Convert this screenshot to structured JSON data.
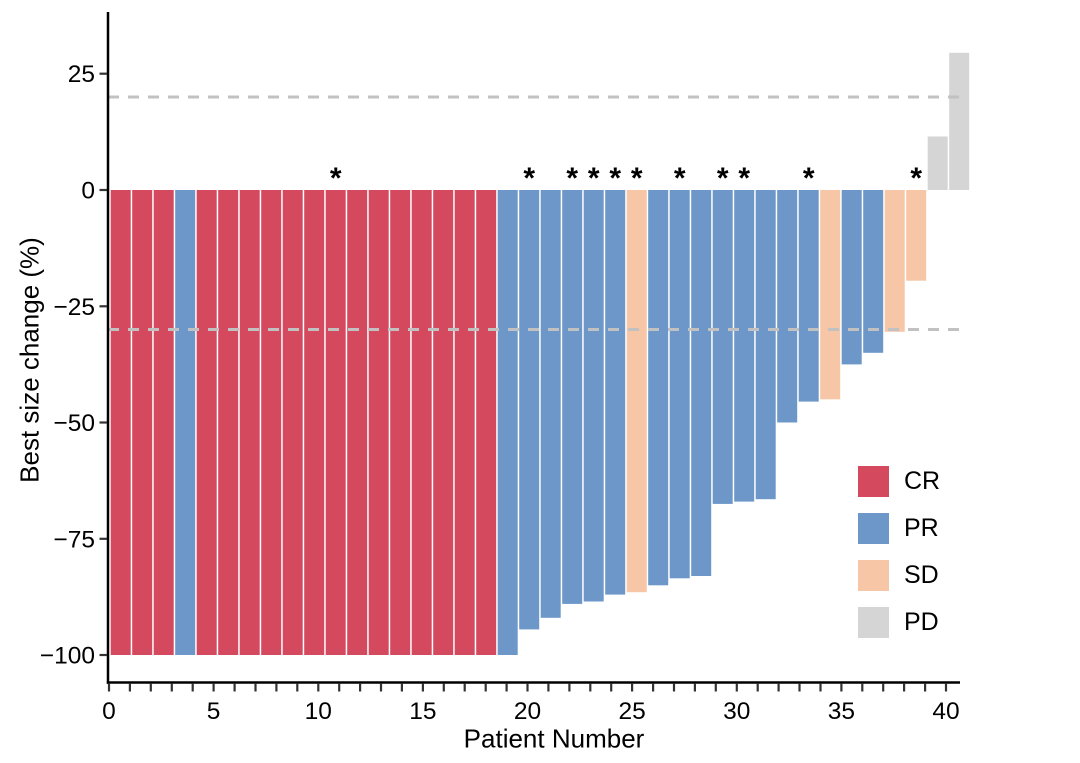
{
  "figure": {
    "background": "#ffffff"
  },
  "chart_data": {
    "type": "bar",
    "subtype": "waterfall",
    "title": "",
    "xlabel": "Patient Number",
    "ylabel": "Best size change (%)",
    "xlim": [
      0,
      41.3
    ],
    "ylim": [
      -106,
      38
    ],
    "x_ticks": [
      0,
      5,
      10,
      15,
      20,
      25,
      30,
      35,
      40
    ],
    "x_tick_labels": [
      "0",
      "5",
      "10",
      "15",
      "20",
      "25",
      "30",
      "35",
      "40"
    ],
    "x_minor_tick_step": 1,
    "y_ticks": [
      25,
      0,
      -25,
      -50,
      -75,
      -100
    ],
    "y_tick_labels": [
      "25",
      "0",
      "−25",
      "−50",
      "−75",
      "−100"
    ],
    "grid": false,
    "reference_lines": [
      {
        "value": 20,
        "style": "dashed",
        "color": "#c1c1c1"
      },
      {
        "value": -30,
        "style": "dashed",
        "color": "#c1c1c1"
      }
    ],
    "annotation_symbol": "*",
    "annotation_note": "asterisk marks flagged patients",
    "legend": {
      "position": "inside-right",
      "items": [
        {
          "label": "CR",
          "color": "#d5495f"
        },
        {
          "label": "PR",
          "color": "#6c97c8"
        },
        {
          "label": "SD",
          "color": "#f6c6a6"
        },
        {
          "label": "PD",
          "color": "#d5d5d5"
        }
      ]
    },
    "patients": [
      {
        "patient": 1,
        "value": -100,
        "response": "CR",
        "star": false
      },
      {
        "patient": 2,
        "value": -100,
        "response": "CR",
        "star": false
      },
      {
        "patient": 3,
        "value": -100,
        "response": "CR",
        "star": false
      },
      {
        "patient": 4,
        "value": -100,
        "response": "PR",
        "star": false
      },
      {
        "patient": 5,
        "value": -100,
        "response": "CR",
        "star": false
      },
      {
        "patient": 6,
        "value": -100,
        "response": "CR",
        "star": false
      },
      {
        "patient": 7,
        "value": -100,
        "response": "CR",
        "star": false
      },
      {
        "patient": 8,
        "value": -100,
        "response": "CR",
        "star": false
      },
      {
        "patient": 9,
        "value": -100,
        "response": "CR",
        "star": false
      },
      {
        "patient": 10,
        "value": -100,
        "response": "CR",
        "star": false
      },
      {
        "patient": 11,
        "value": -100,
        "response": "CR",
        "star": true
      },
      {
        "patient": 12,
        "value": -100,
        "response": "CR",
        "star": false
      },
      {
        "patient": 13,
        "value": -100,
        "response": "CR",
        "star": false
      },
      {
        "patient": 14,
        "value": -100,
        "response": "CR",
        "star": false
      },
      {
        "patient": 15,
        "value": -100,
        "response": "CR",
        "star": false
      },
      {
        "patient": 16,
        "value": -100,
        "response": "CR",
        "star": false
      },
      {
        "patient": 17,
        "value": -100,
        "response": "CR",
        "star": false
      },
      {
        "patient": 18,
        "value": -100,
        "response": "CR",
        "star": false
      },
      {
        "patient": 19,
        "value": -100,
        "response": "PR",
        "star": false
      },
      {
        "patient": 20,
        "value": -94.5,
        "response": "PR",
        "star": true
      },
      {
        "patient": 21,
        "value": -92,
        "response": "PR",
        "star": false
      },
      {
        "patient": 22,
        "value": -89,
        "response": "PR",
        "star": true
      },
      {
        "patient": 23,
        "value": -88.5,
        "response": "PR",
        "star": true
      },
      {
        "patient": 24,
        "value": -87,
        "response": "PR",
        "star": true
      },
      {
        "patient": 25,
        "value": -86.5,
        "response": "SD",
        "star": true
      },
      {
        "patient": 26,
        "value": -85,
        "response": "PR",
        "star": false
      },
      {
        "patient": 27,
        "value": -83.5,
        "response": "PR",
        "star": true
      },
      {
        "patient": 28,
        "value": -83,
        "response": "PR",
        "star": false
      },
      {
        "patient": 29,
        "value": -67.5,
        "response": "PR",
        "star": true
      },
      {
        "patient": 30,
        "value": -67,
        "response": "PR",
        "star": true
      },
      {
        "patient": 31,
        "value": -66.5,
        "response": "PR",
        "star": false
      },
      {
        "patient": 32,
        "value": -50,
        "response": "PR",
        "star": false
      },
      {
        "patient": 33,
        "value": -45.5,
        "response": "PR",
        "star": true
      },
      {
        "patient": 34,
        "value": -45,
        "response": "SD",
        "star": false
      },
      {
        "patient": 35,
        "value": -37.5,
        "response": "PR",
        "star": false
      },
      {
        "patient": 36,
        "value": -35,
        "response": "PR",
        "star": false
      },
      {
        "patient": 37,
        "value": -30.5,
        "response": "SD",
        "star": false
      },
      {
        "patient": 38,
        "value": -19.5,
        "response": "SD",
        "star": true
      },
      {
        "patient": 39,
        "value": 11.5,
        "response": "PD",
        "star": false
      },
      {
        "patient": 40,
        "value": 29.5,
        "response": "PD",
        "star": false
      }
    ]
  }
}
